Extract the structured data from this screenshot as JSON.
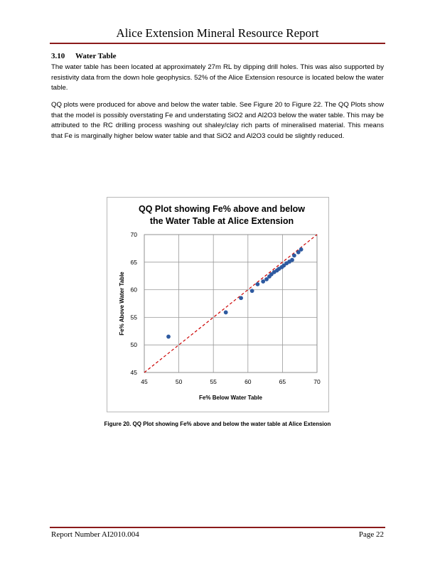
{
  "header": {
    "title": "Alice Extension Mineral Resource Report"
  },
  "section": {
    "number": "3.10",
    "title": "Water Table"
  },
  "paragraphs": [
    "The water table has been located at approximately 27m RL by dipping drill holes.  This was also supported by resistivity data from the down hole geophysics.  52% of the Alice Extension resource is located below the water table.",
    "QQ plots were produced for above and below the water table.  See Figure 20 to Figure 22.  The QQ Plots show that the model is possibly overstating Fe and understating SiO2 and Al2O3 below the water table.  This may be attributed to the RC drilling process washing out shaley/clay rich parts of mineralised material.  This means that Fe is marginally higher below water table and that SiO2 and Al2O3 could be slightly reduced."
  ],
  "chart_data": {
    "type": "scatter",
    "title_lines": [
      "QQ Plot showing Fe% above and below",
      "the Water Table at Alice Extension"
    ],
    "xlabel": "Fe% Below Water Table",
    "ylabel": "Fe% Above Water Table",
    "xlim": [
      45,
      70
    ],
    "ylim": [
      45,
      70
    ],
    "xticks": [
      "45",
      "50",
      "55",
      "60",
      "65",
      "70"
    ],
    "yticks": [
      "45",
      "50",
      "55",
      "60",
      "65",
      "70"
    ],
    "grid": true,
    "reference_line": {
      "from": [
        45,
        45
      ],
      "to": [
        70,
        70
      ],
      "color": "#cc0000",
      "style": "dashed"
    },
    "marker_color": "#2e5aa0",
    "points": [
      [
        48.5,
        51.5
      ],
      [
        56.8,
        55.9
      ],
      [
        59.0,
        58.5
      ],
      [
        60.6,
        59.8
      ],
      [
        61.4,
        61.0
      ],
      [
        62.2,
        61.5
      ],
      [
        62.7,
        61.9
      ],
      [
        63.1,
        62.4
      ],
      [
        63.4,
        62.8
      ],
      [
        63.8,
        63.2
      ],
      [
        64.2,
        63.5
      ],
      [
        64.5,
        63.8
      ],
      [
        64.9,
        64.1
      ],
      [
        65.2,
        64.4
      ],
      [
        65.6,
        64.8
      ],
      [
        66.0,
        65.1
      ],
      [
        66.4,
        65.4
      ],
      [
        66.7,
        66.2
      ],
      [
        67.3,
        66.8
      ],
      [
        67.7,
        67.3
      ]
    ]
  },
  "caption": "Figure 20. QQ Plot showing Fe% above and below the water table at Alice Extension",
  "footer": {
    "report_number": "Report Number AI2010.004",
    "page": "Page 22"
  }
}
